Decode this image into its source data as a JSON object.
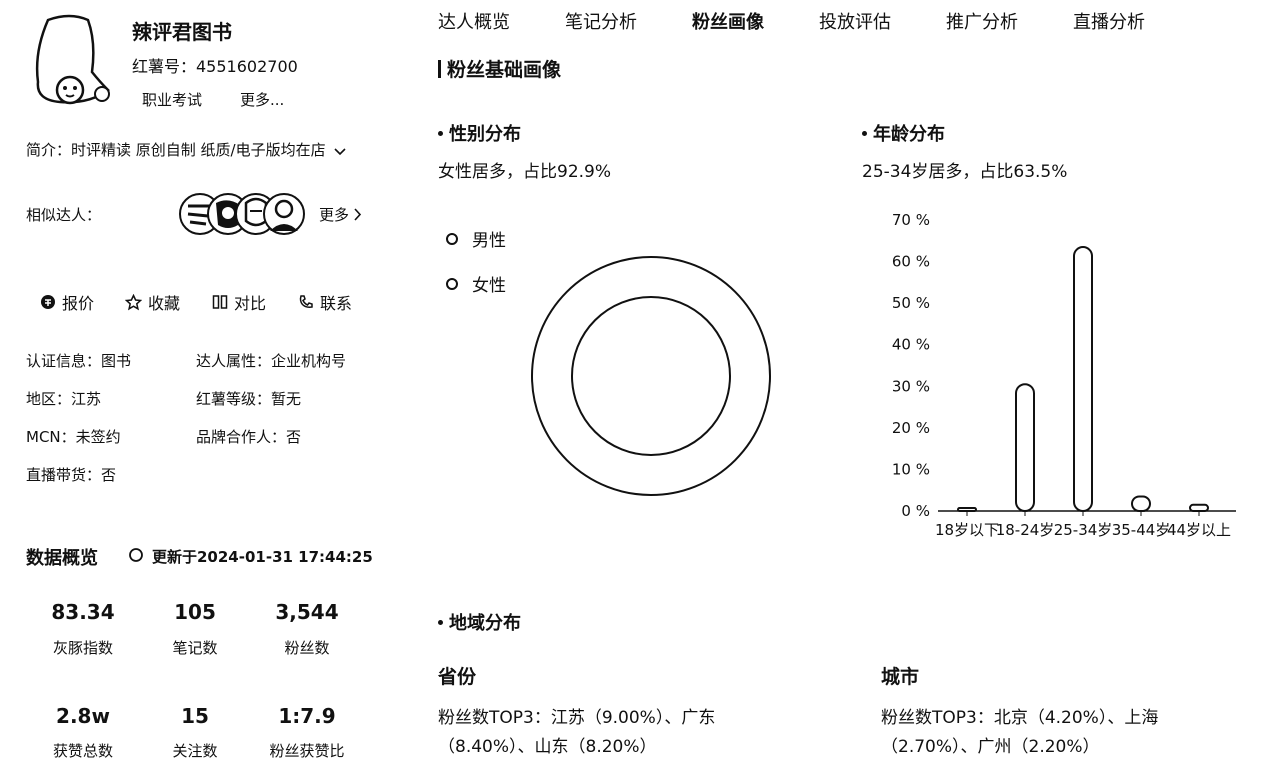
{
  "profile": {
    "name": "辣评君图书",
    "red_id": "红薯号：4551602700",
    "tag_career": "职业考试",
    "tag_more": "更多...",
    "intro": "简介：时评精读 原创自制 纸质/电子版均在店",
    "similar_label": "相似达人：",
    "similar_more": "更多"
  },
  "actions": [
    {
      "label": "报价",
      "icon": "quote-icon"
    },
    {
      "label": "收藏",
      "icon": "star-icon"
    },
    {
      "label": "对比",
      "icon": "compare-icon"
    },
    {
      "label": "联系",
      "icon": "phone-icon"
    }
  ],
  "info": {
    "cert": "认证信息：图书",
    "attr": "达人属性：企业机构号",
    "region": "地区：江苏",
    "level": "红薯等级：暂无",
    "mcn": "MCN：未签约",
    "partner": "品牌合作人：否",
    "live": "直播带货：否"
  },
  "overview": {
    "title": "数据概览",
    "updated": "更新于2024-01-31 17:44:25",
    "stats": [
      {
        "value": "83.34",
        "label": "灰豚指数"
      },
      {
        "value": "105",
        "label": "笔记数"
      },
      {
        "value": "3,544",
        "label": "粉丝数"
      },
      {
        "value": "2.8w",
        "label": "获赞总数"
      },
      {
        "value": "15",
        "label": "关注数"
      },
      {
        "value": "1:7.9",
        "label": "粉丝获赞比"
      }
    ]
  },
  "tabs": [
    "达人概览",
    "笔记分析",
    "粉丝画像",
    "投放评估",
    "推广分析",
    "直播分析"
  ],
  "active_tab": "粉丝画像",
  "main_title": "粉丝基础画像",
  "gender": {
    "title": "性别分布",
    "desc": "女性居多，占比92.9%",
    "legend": [
      "男性",
      "女性"
    ]
  },
  "age": {
    "title": "年龄分布",
    "desc": "25-34岁居多，占比63.5%"
  },
  "chart_data": {
    "type": "bar",
    "categories": [
      "18岁以下",
      "18-24岁",
      "25-34岁",
      "35-44岁",
      "44岁以上"
    ],
    "values": [
      0.5,
      30.5,
      63.5,
      3.5,
      1.5
    ],
    "y_ticks": [
      "0 %",
      "10 %",
      "20 %",
      "30 %",
      "40 %",
      "50 %",
      "60 %",
      "70 %"
    ],
    "ylim": [
      0,
      70
    ],
    "grid": false
  },
  "region": {
    "title": "地域分布",
    "province_head": "省份",
    "province_text": "粉丝数TOP3：江苏（9.00%）、广东（8.40%）、山东（8.20%）",
    "city_head": "城市",
    "city_text": "粉丝数TOP3：北京（4.20%）、上海（2.70%）、广州（2.20%）"
  }
}
